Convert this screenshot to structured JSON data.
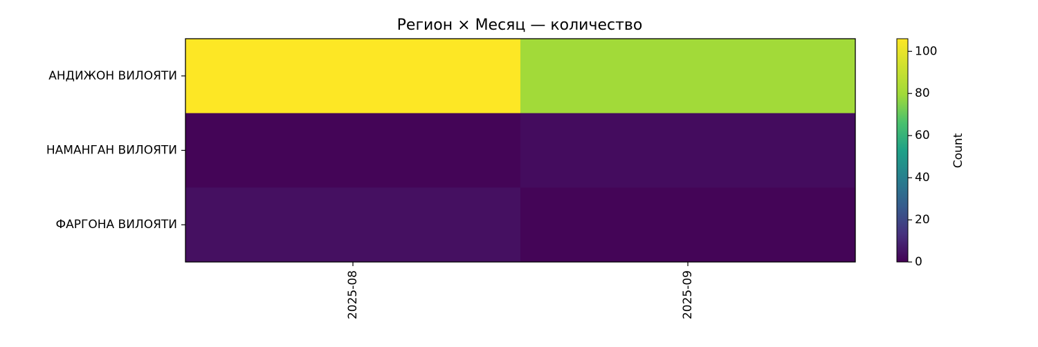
{
  "chart_data": {
    "type": "heatmap",
    "title": "Регион × Месяц — количество",
    "xlabel": "",
    "ylabel": "",
    "x_categories": [
      "2025-08",
      "2025-09"
    ],
    "y_categories": [
      "АНДИЖОН ВИЛОЯТИ",
      "НАМАНГАН ВИЛОЯТИ",
      "ФАРГОНА ВИЛОЯТИ"
    ],
    "values": [
      [
        106,
        80
      ],
      [
        1,
        3
      ],
      [
        4,
        1
      ]
    ],
    "colormap": "viridis",
    "colorbar": {
      "label": "Count",
      "range": [
        0,
        106
      ],
      "ticks": [
        0,
        20,
        40,
        60,
        80,
        100
      ]
    },
    "x_tick_rotation": "vertical"
  }
}
